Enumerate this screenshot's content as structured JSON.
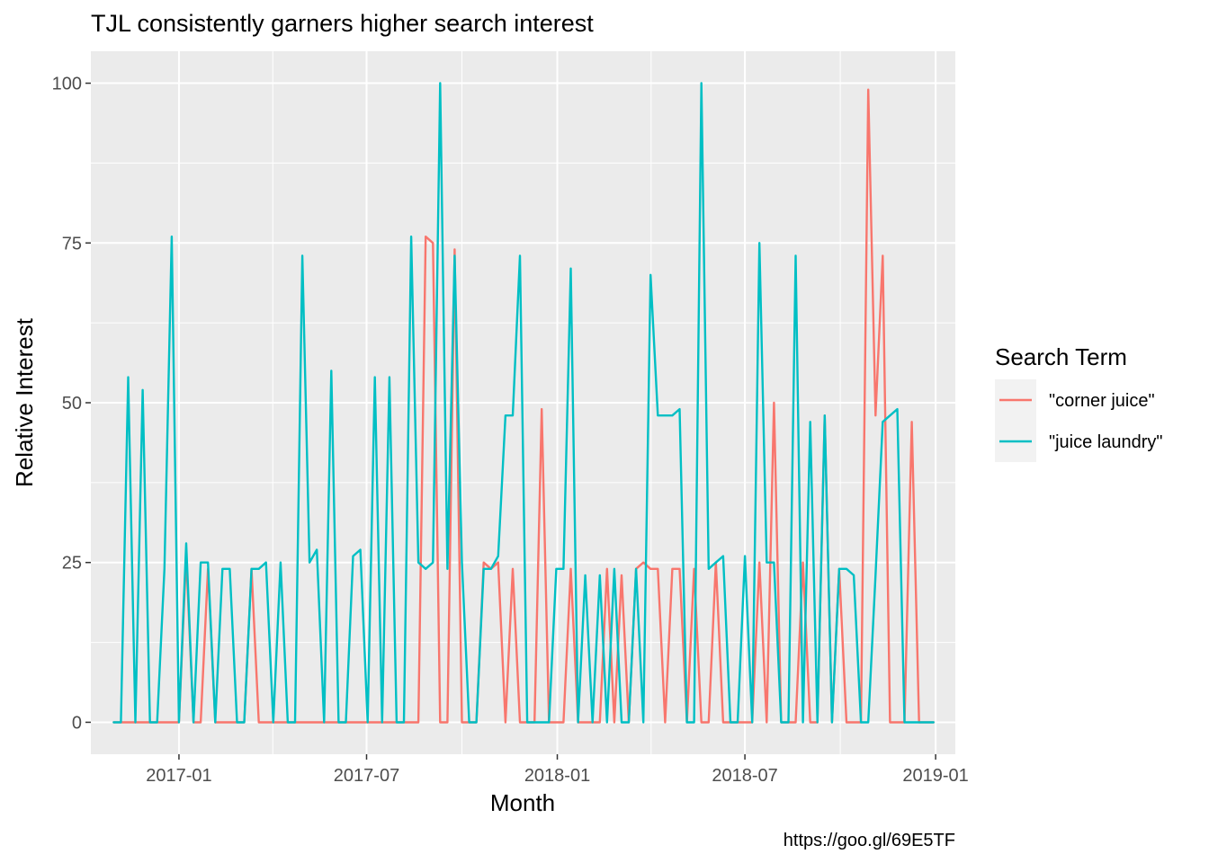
{
  "chart_data": {
    "type": "line",
    "title": "TJL consistently garners higher search interest",
    "xlabel": "Month",
    "ylabel": "Relative Interest",
    "caption": "https://goo.gl/69E5TF",
    "x_axis": {
      "type": "date",
      "range": [
        "2016-10-08",
        "2019-01-20"
      ],
      "ticks": [
        "2017-01-01",
        "2017-07-01",
        "2018-01-01",
        "2018-07-01",
        "2019-01-01"
      ],
      "tick_labels": [
        "2017-01",
        "2017-07",
        "2018-01",
        "2018-07",
        "2019-01"
      ]
    },
    "y_axis": {
      "range": [
        -5,
        105
      ],
      "ticks": [
        0,
        25,
        50,
        75,
        100
      ],
      "tick_labels": [
        "0",
        "25",
        "50",
        "75",
        "100"
      ]
    },
    "grid": true,
    "legend": {
      "title": "Search Term",
      "placement": "right"
    },
    "x": [
      "2016-10-30",
      "2016-11-06",
      "2016-11-13",
      "2016-11-20",
      "2016-11-27",
      "2016-12-04",
      "2016-12-11",
      "2016-12-18",
      "2016-12-25",
      "2017-01-01",
      "2017-01-08",
      "2017-01-15",
      "2017-01-22",
      "2017-01-29",
      "2017-02-05",
      "2017-02-12",
      "2017-02-19",
      "2017-02-26",
      "2017-03-05",
      "2017-03-12",
      "2017-03-19",
      "2017-03-26",
      "2017-04-02",
      "2017-04-09",
      "2017-04-16",
      "2017-04-23",
      "2017-04-30",
      "2017-05-07",
      "2017-05-14",
      "2017-05-21",
      "2017-05-28",
      "2017-06-04",
      "2017-06-11",
      "2017-06-18",
      "2017-06-25",
      "2017-07-02",
      "2017-07-09",
      "2017-07-16",
      "2017-07-23",
      "2017-07-30",
      "2017-08-06",
      "2017-08-13",
      "2017-08-20",
      "2017-08-27",
      "2017-09-03",
      "2017-09-10",
      "2017-09-17",
      "2017-09-24",
      "2017-10-01",
      "2017-10-08",
      "2017-10-15",
      "2017-10-22",
      "2017-10-29",
      "2017-11-05",
      "2017-11-12",
      "2017-11-19",
      "2017-11-26",
      "2017-12-03",
      "2017-12-10",
      "2017-12-17",
      "2017-12-24",
      "2017-12-31",
      "2018-01-07",
      "2018-01-14",
      "2018-01-21",
      "2018-01-28",
      "2018-02-04",
      "2018-02-11",
      "2018-02-18",
      "2018-02-25",
      "2018-03-04",
      "2018-03-11",
      "2018-03-18",
      "2018-03-25",
      "2018-04-01",
      "2018-04-08",
      "2018-04-15",
      "2018-04-22",
      "2018-04-29",
      "2018-05-06",
      "2018-05-13",
      "2018-05-20",
      "2018-05-27",
      "2018-06-03",
      "2018-06-10",
      "2018-06-17",
      "2018-06-24",
      "2018-07-01",
      "2018-07-08",
      "2018-07-15",
      "2018-07-22",
      "2018-07-29",
      "2018-08-05",
      "2018-08-12",
      "2018-08-19",
      "2018-08-26",
      "2018-09-02",
      "2018-09-09",
      "2018-09-16",
      "2018-09-23",
      "2018-09-30",
      "2018-10-07",
      "2018-10-14",
      "2018-10-21",
      "2018-10-28",
      "2018-11-04",
      "2018-11-11",
      "2018-11-18",
      "2018-11-25",
      "2018-12-02",
      "2018-12-09",
      "2018-12-16",
      "2018-12-23",
      "2018-12-30"
    ],
    "series": [
      {
        "name": "\"corner juice\"",
        "color": "#F8766D",
        "values": [
          0,
          0,
          0,
          0,
          0,
          0,
          0,
          0,
          0,
          0,
          26,
          0,
          0,
          24,
          0,
          0,
          0,
          0,
          0,
          24,
          0,
          0,
          0,
          0,
          0,
          0,
          0,
          0,
          0,
          0,
          0,
          0,
          0,
          0,
          0,
          0,
          0,
          0,
          0,
          0,
          0,
          0,
          0,
          76,
          75,
          0,
          0,
          74,
          0,
          0,
          0,
          25,
          24,
          25,
          0,
          24,
          0,
          0,
          0,
          49,
          0,
          0,
          0,
          24,
          0,
          0,
          0,
          0,
          24,
          0,
          23,
          0,
          24,
          25,
          24,
          24,
          0,
          24,
          24,
          0,
          24,
          0,
          0,
          25,
          0,
          0,
          0,
          0,
          0,
          25,
          0,
          50,
          0,
          0,
          0,
          25,
          0,
          0,
          48,
          0,
          24,
          0,
          0,
          0,
          99,
          48,
          73,
          0,
          0,
          0,
          47,
          0,
          0,
          0
        ]
      },
      {
        "name": "\"juice laundry\"",
        "color": "#00BFC4",
        "values": [
          0,
          0,
          54,
          0,
          52,
          0,
          0,
          24,
          76,
          0,
          28,
          0,
          25,
          25,
          0,
          24,
          24,
          0,
          0,
          24,
          24,
          25,
          0,
          25,
          0,
          0,
          73,
          25,
          27,
          0,
          55,
          0,
          0,
          26,
          27,
          0,
          54,
          0,
          54,
          0,
          0,
          76,
          25,
          24,
          25,
          100,
          24,
          73,
          25,
          0,
          0,
          24,
          24,
          26,
          48,
          48,
          73,
          0,
          0,
          0,
          0,
          24,
          24,
          71,
          0,
          23,
          0,
          23,
          0,
          24,
          0,
          0,
          24,
          0,
          70,
          48,
          48,
          48,
          49,
          0,
          0,
          100,
          24,
          25,
          26,
          0,
          0,
          26,
          0,
          75,
          25,
          25,
          0,
          0,
          73,
          0,
          47,
          0,
          48,
          0,
          24,
          24,
          23,
          0,
          0,
          23,
          47,
          48,
          49,
          0,
          0,
          0,
          0,
          0
        ]
      }
    ]
  }
}
